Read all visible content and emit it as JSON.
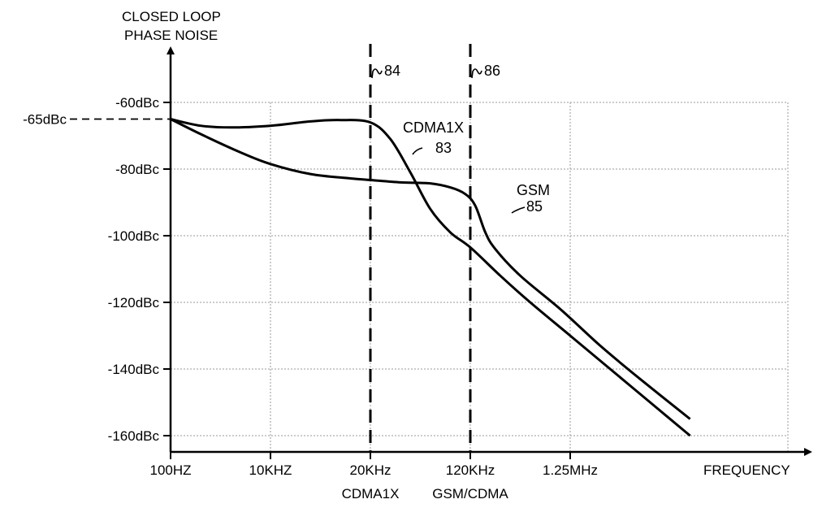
{
  "chart_data": {
    "type": "line",
    "ylabel_lines": [
      "CLOSED LOOP",
      "PHASE NOISE"
    ],
    "xlabel": "FREQUENCY",
    "y_ticks": [
      -60,
      -80,
      -100,
      -120,
      -140,
      -160
    ],
    "y_tick_labels": [
      "-60dBc",
      "-80dBc",
      "-100dBc",
      "-120dBc",
      "-140dBc",
      "-160dBc"
    ],
    "ylim": [
      -165,
      -57
    ],
    "x_ticks": [
      0,
      1,
      2,
      3,
      4
    ],
    "x_tick_labels": [
      "100HZ",
      "10KHZ",
      "20KHz",
      "120KHz",
      "1.25MHz"
    ],
    "x_sublabels": [
      {
        "x": 2,
        "text": "CDMA1X"
      },
      {
        "x": 3,
        "text": "GSM/CDMA"
      }
    ],
    "xlim": [
      0,
      5.3
    ],
    "grid": true,
    "reference_marker": {
      "y": -65,
      "label": "-65dBc"
    },
    "vertical_markers": [
      {
        "x": 2,
        "label": "84"
      },
      {
        "x": 3,
        "label": "86"
      }
    ],
    "series": [
      {
        "name": "CDMA1X",
        "ref": "83",
        "x": [
          0,
          0.3,
          0.6,
          1.0,
          1.4,
          1.7,
          2.0,
          2.2,
          2.4,
          2.6,
          2.8,
          3.0,
          3.3,
          3.6,
          4.0,
          4.4,
          4.8,
          5.2
        ],
        "y": [
          -65,
          -67,
          -67.5,
          -67,
          -65.7,
          -65.3,
          -66,
          -71,
          -81,
          -92,
          -99,
          -103.5,
          -112,
          -120,
          -130,
          -140,
          -150,
          -160
        ]
      },
      {
        "name": "GSM",
        "ref": "85",
        "x": [
          0,
          0.3,
          0.7,
          1.0,
          1.4,
          1.8,
          2.0,
          2.3,
          2.6,
          2.8,
          2.95,
          3.05,
          3.15,
          3.25,
          3.5,
          3.9,
          4.3,
          4.7,
          5.2
        ],
        "y": [
          -65,
          -69.5,
          -75,
          -78.5,
          -81.5,
          -82.8,
          -83.3,
          -84,
          -84.3,
          -85.5,
          -87.5,
          -91,
          -99,
          -104,
          -112,
          -122,
          -133,
          -143,
          -155
        ]
      }
    ],
    "annotations": [
      {
        "series": "CDMA1X",
        "name": "CDMA1X",
        "ref": "83"
      },
      {
        "series": "GSM",
        "name": "GSM",
        "ref": "85"
      }
    ]
  }
}
